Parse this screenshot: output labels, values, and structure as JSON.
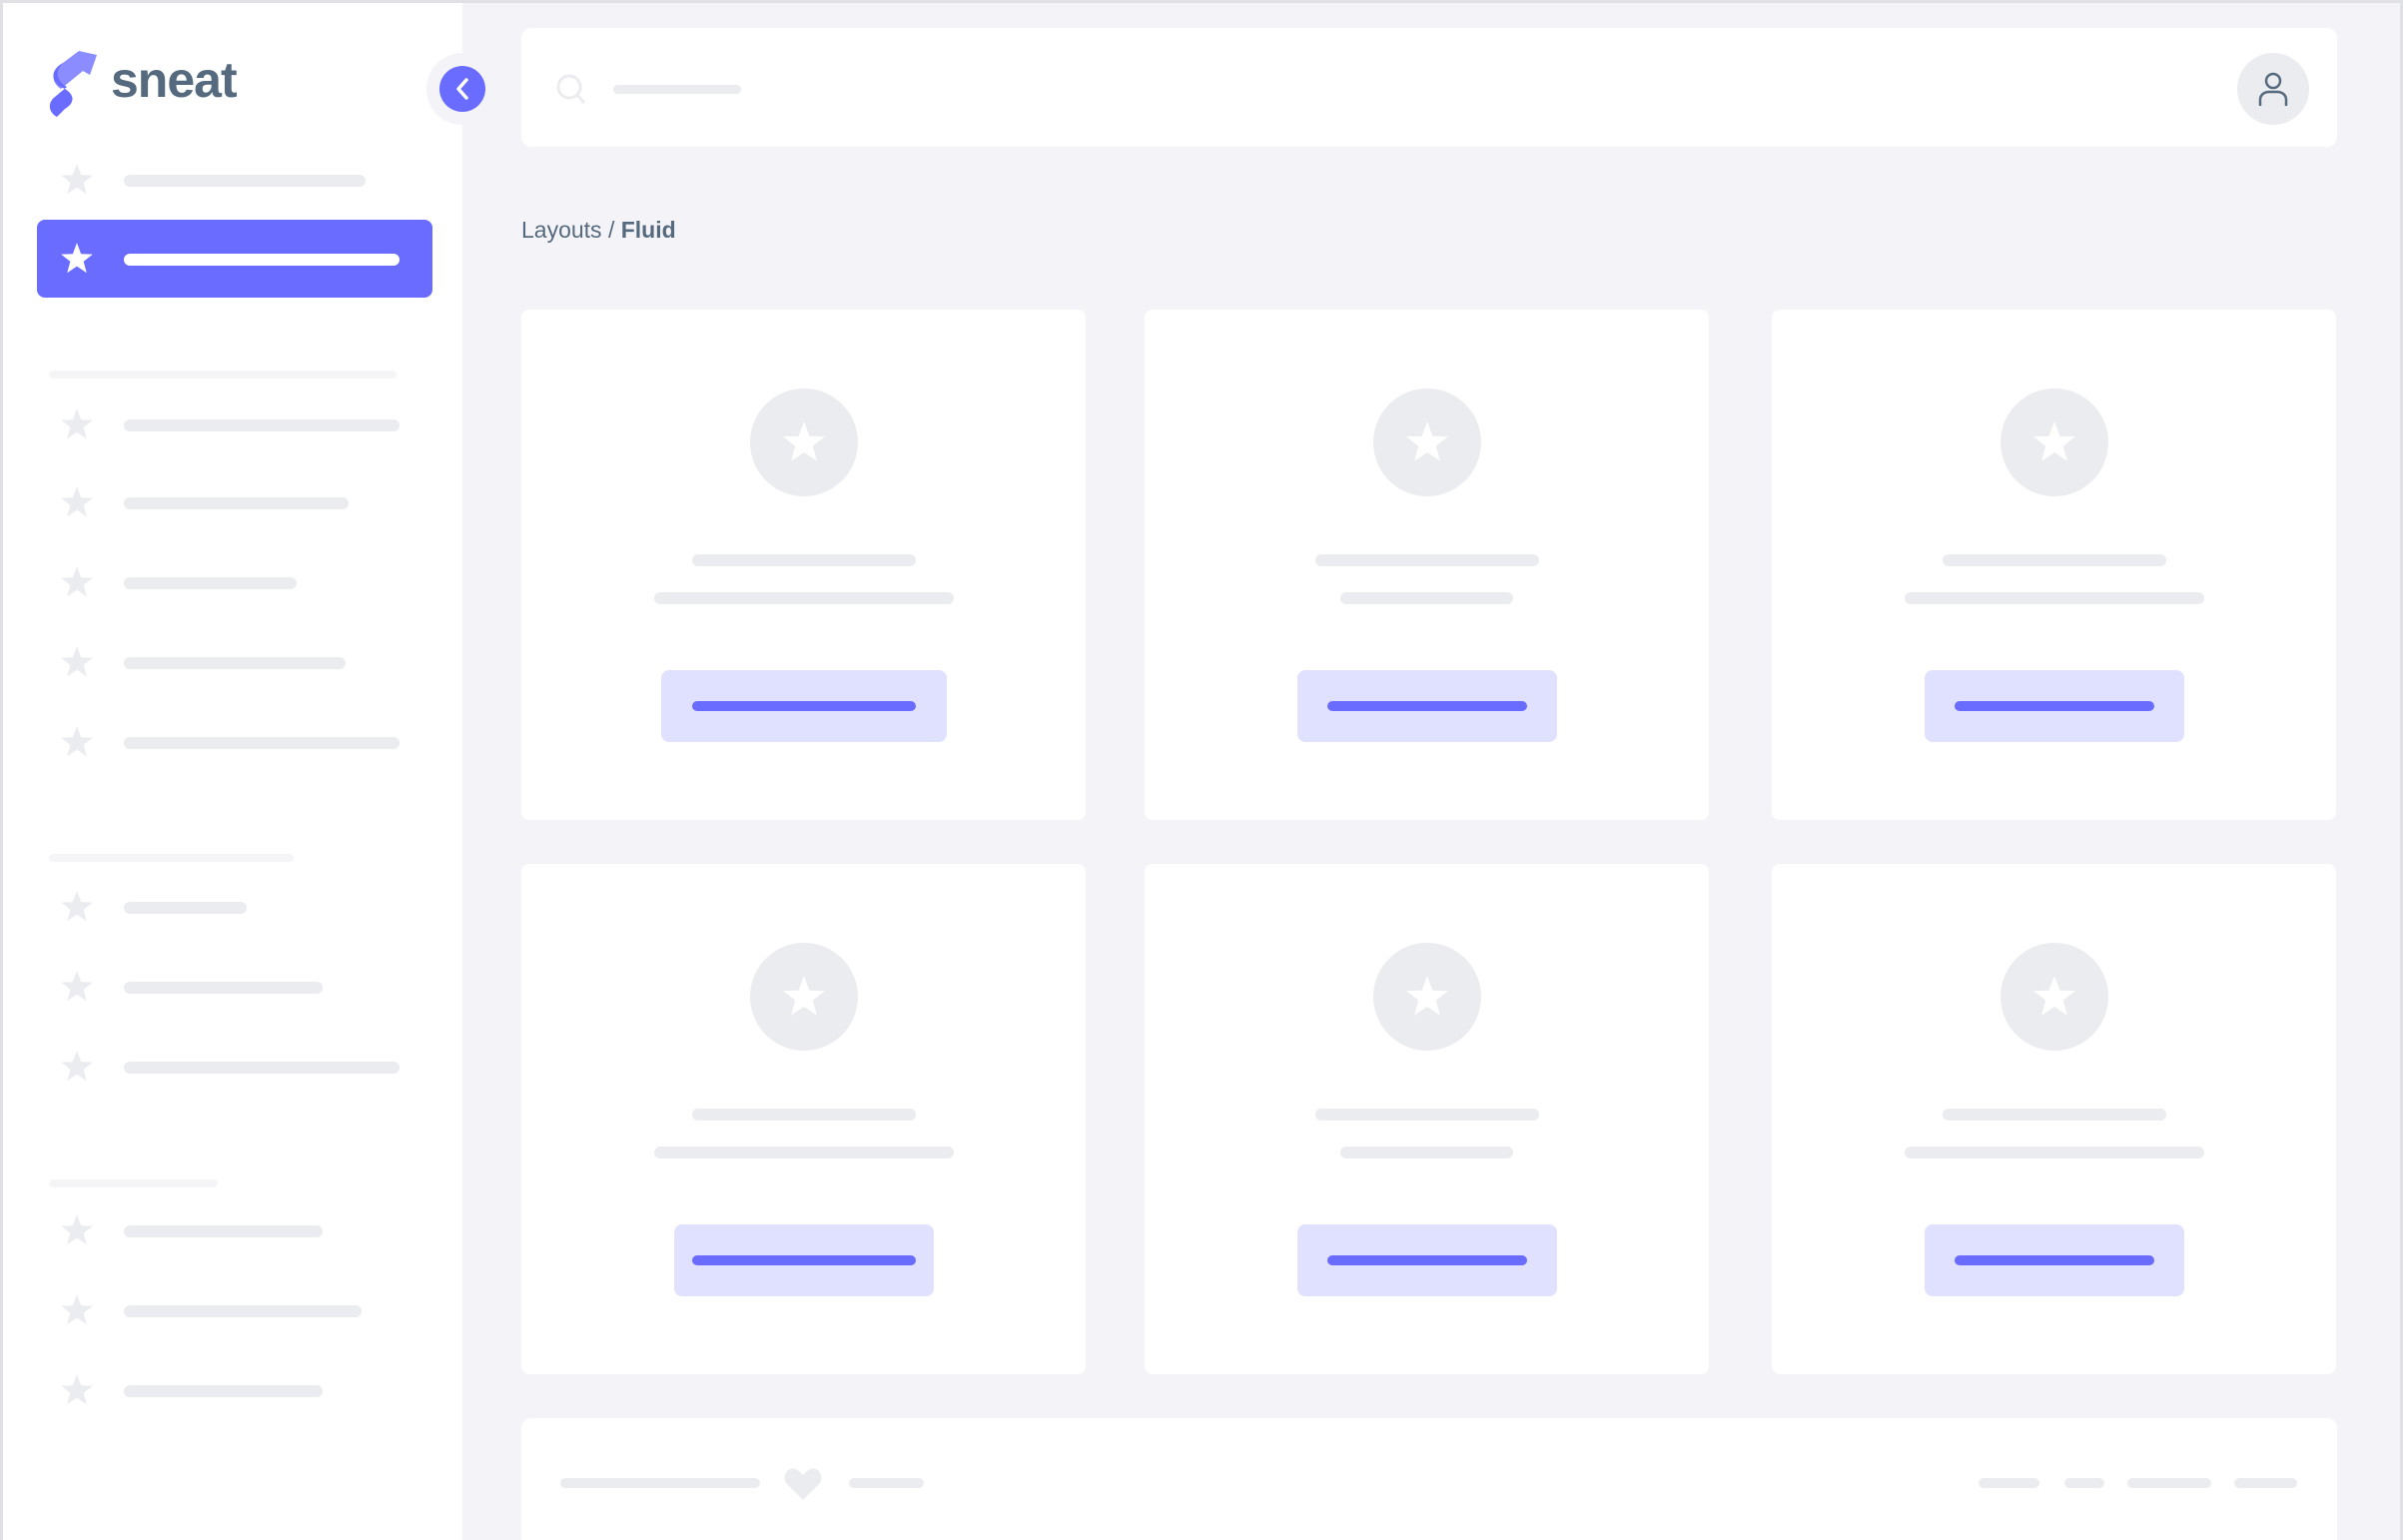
{
  "brand": {
    "name": "sneat",
    "logo_colors": [
      "#696cff",
      "#8a8cff"
    ]
  },
  "breadcrumb": {
    "parent": "Layouts",
    "separator": " / ",
    "current": "Fluid"
  },
  "sidebar": {
    "active_index": 1,
    "icon": "star-icon"
  },
  "header": {
    "search_icon": "search-icon",
    "avatar_icon": "user-icon"
  },
  "footer": {
    "icon": "heart-icon"
  },
  "colors": {
    "accent": "#696cff",
    "accent_light": "#e0e0ff",
    "skeleton": "#ebecef",
    "background": "#f4f4f8",
    "text": "#566a7f"
  }
}
